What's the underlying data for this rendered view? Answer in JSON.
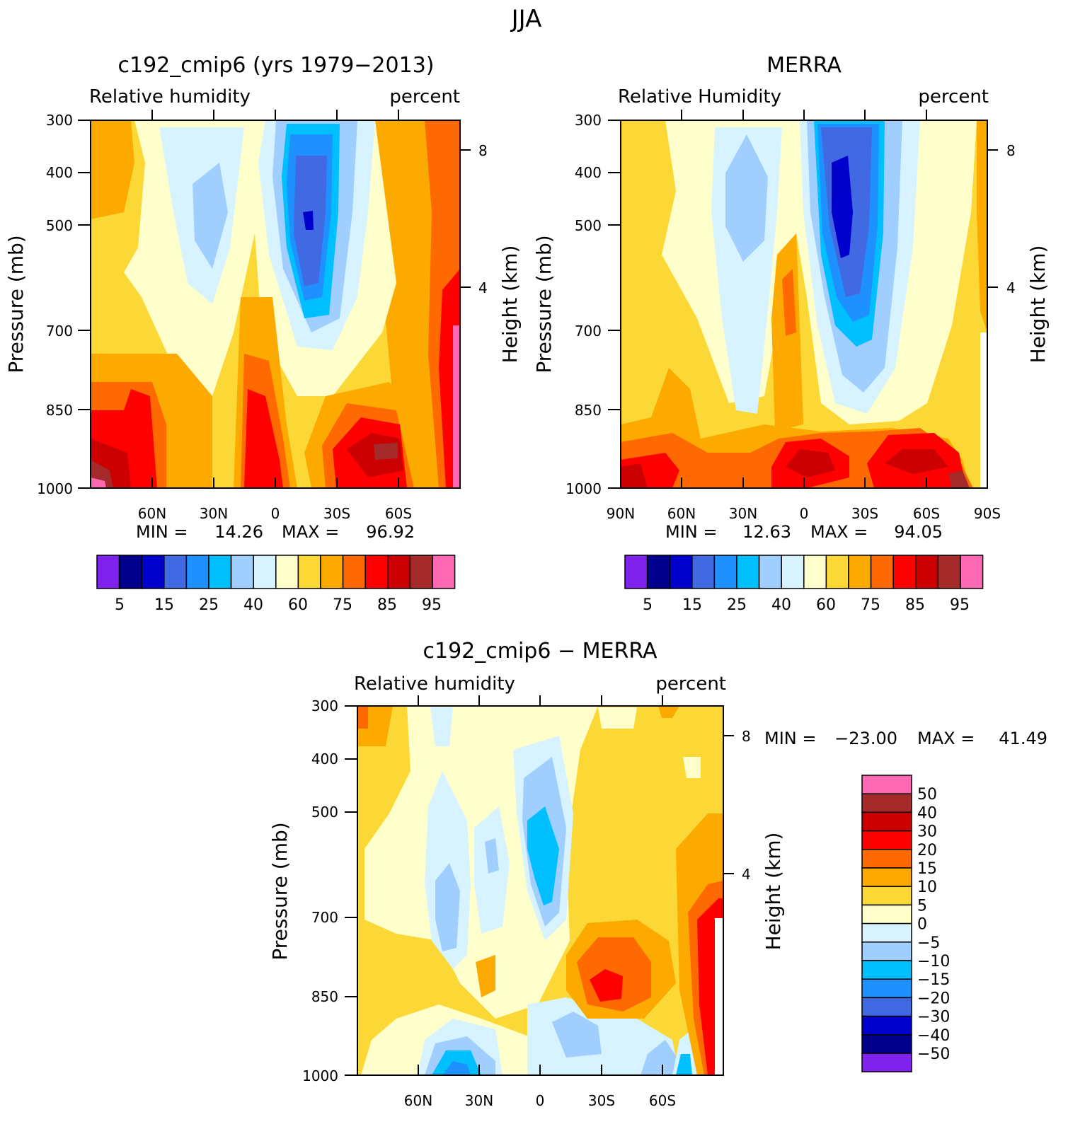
{
  "page_title": "JJA",
  "colors": {
    "rh_scale": [
      "#7f22ee",
      "#00008c",
      "#0000cd",
      "#4169e1",
      "#1e90ff",
      "#00bfff",
      "#a0cfff",
      "#d6f3ff",
      "#ffffcc",
      "#fcd837",
      "#fcaa00",
      "#ff6a00",
      "#ff0000",
      "#cc0000",
      "#a52a2a",
      "#ff69b4"
    ],
    "diff_scale": [
      "#7f22ee",
      "#00008c",
      "#0000cd",
      "#4169e1",
      "#1e90ff",
      "#00bfff",
      "#a0cfff",
      "#d6f3ff",
      "#ffffcc",
      "#fcd837",
      "#fcaa00",
      "#ff6a00",
      "#ff0000",
      "#cc0000",
      "#a52a2a",
      "#ff69b4"
    ]
  },
  "chart_data": [
    {
      "type": "heatmap",
      "title": "c192_cmip6 (yrs 1979−2013)",
      "left_label": "Relative humidity",
      "right_label": "percent",
      "ylabel": "Pressure (mb)",
      "y2label": "Height (km)",
      "yticks": [
        "300",
        "400",
        "500",
        "700",
        "850",
        "1000"
      ],
      "y2ticks": [
        "8",
        "4"
      ],
      "xticks": [
        "60N",
        "30N",
        "0",
        "30S",
        "60S"
      ],
      "xlim": [
        -90,
        90
      ],
      "ylim": [
        1000,
        300
      ],
      "min_label": "MIN =",
      "min_value": "14.26",
      "max_label": "MAX =",
      "max_value": "96.92",
      "colorbar_labels": [
        "5",
        "15",
        "25",
        "40",
        "60",
        "75",
        "85",
        "95"
      ]
    },
    {
      "type": "heatmap",
      "title": "MERRA",
      "left_label": "Relative Humidity",
      "right_label": "percent",
      "ylabel": "Pressure (mb)",
      "y2label": "Height (km)",
      "yticks": [
        "300",
        "400",
        "500",
        "700",
        "850",
        "1000"
      ],
      "y2ticks": [
        "8",
        "4"
      ],
      "xticks": [
        "90N",
        "60N",
        "30N",
        "0",
        "30S",
        "60S",
        "90S"
      ],
      "xlim": [
        -90,
        90
      ],
      "ylim": [
        1000,
        300
      ],
      "min_label": "MIN =",
      "min_value": "12.63",
      "max_label": "MAX =",
      "max_value": "94.05",
      "colorbar_labels": [
        "5",
        "15",
        "25",
        "40",
        "60",
        "75",
        "85",
        "95"
      ]
    },
    {
      "type": "heatmap",
      "title": "c192_cmip6 − MERRA",
      "left_label": "Relative humidity",
      "right_label": "percent",
      "ylabel": "Pressure (mb)",
      "y2label": "Height (km)",
      "yticks": [
        "300",
        "400",
        "500",
        "700",
        "850",
        "1000"
      ],
      "y2ticks": [
        "8",
        "4"
      ],
      "xticks": [
        "60N",
        "30N",
        "0",
        "30S",
        "60S"
      ],
      "xlim": [
        -90,
        90
      ],
      "ylim": [
        1000,
        300
      ],
      "min_label": "MIN =",
      "min_value": "−23.00",
      "max_label": "MAX =",
      "max_value": "41.49",
      "colorbar_labels": [
        "50",
        "40",
        "30",
        "20",
        "15",
        "10",
        "5",
        "0",
        "−5",
        "−10",
        "−15",
        "−20",
        "−30",
        "−40",
        "−50"
      ]
    }
  ]
}
